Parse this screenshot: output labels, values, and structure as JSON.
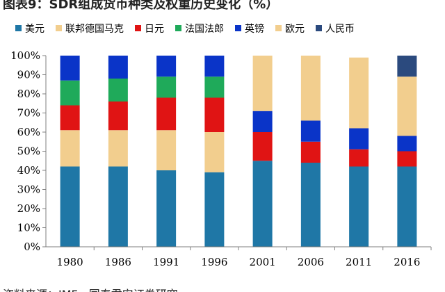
{
  "header": {
    "title": "图表9：SDR组成货币种类及权重历史变化（%）"
  },
  "footer": {
    "source": "资料来源：IMF，国泰君安证券研究"
  },
  "chart_data": {
    "type": "bar",
    "stacked": true,
    "title": "",
    "xlabel": "",
    "ylabel": "",
    "ylim": [
      0,
      100
    ],
    "yticks": [
      "0%",
      "10%",
      "20%",
      "30%",
      "40%",
      "50%",
      "60%",
      "70%",
      "80%",
      "90%",
      "100%"
    ],
    "grid": false,
    "legend_position": "top",
    "categories": [
      "1980",
      "1986",
      "1991",
      "1996",
      "2001",
      "2006",
      "2011",
      "2016"
    ],
    "series": [
      {
        "name": "美元",
        "color": "#1F77A6",
        "values": [
          42,
          42,
          40,
          39,
          45,
          44,
          42,
          42
        ]
      },
      {
        "name": "联邦德国马克",
        "color": "#F2CE8E",
        "values": [
          19,
          19,
          21,
          21,
          0,
          0,
          0,
          0
        ]
      },
      {
        "name": "日元",
        "color": "#E01414",
        "values": [
          13,
          15,
          17,
          18,
          15,
          11,
          9,
          8
        ]
      },
      {
        "name": "法国法郎",
        "color": "#1FAA5A",
        "values": [
          13,
          12,
          11,
          11,
          0,
          0,
          0,
          0
        ]
      },
      {
        "name": "英镑",
        "color": "#0A34C8",
        "values": [
          13,
          12,
          11,
          11,
          11,
          11,
          11,
          8
        ]
      },
      {
        "name": "欧元",
        "color": "#F2CE8E",
        "values": [
          0,
          0,
          0,
          0,
          29,
          34,
          37,
          31
        ]
      },
      {
        "name": "人民币",
        "color": "#2B4A7E",
        "values": [
          0,
          0,
          0,
          0,
          0,
          0,
          0,
          11
        ]
      }
    ]
  }
}
